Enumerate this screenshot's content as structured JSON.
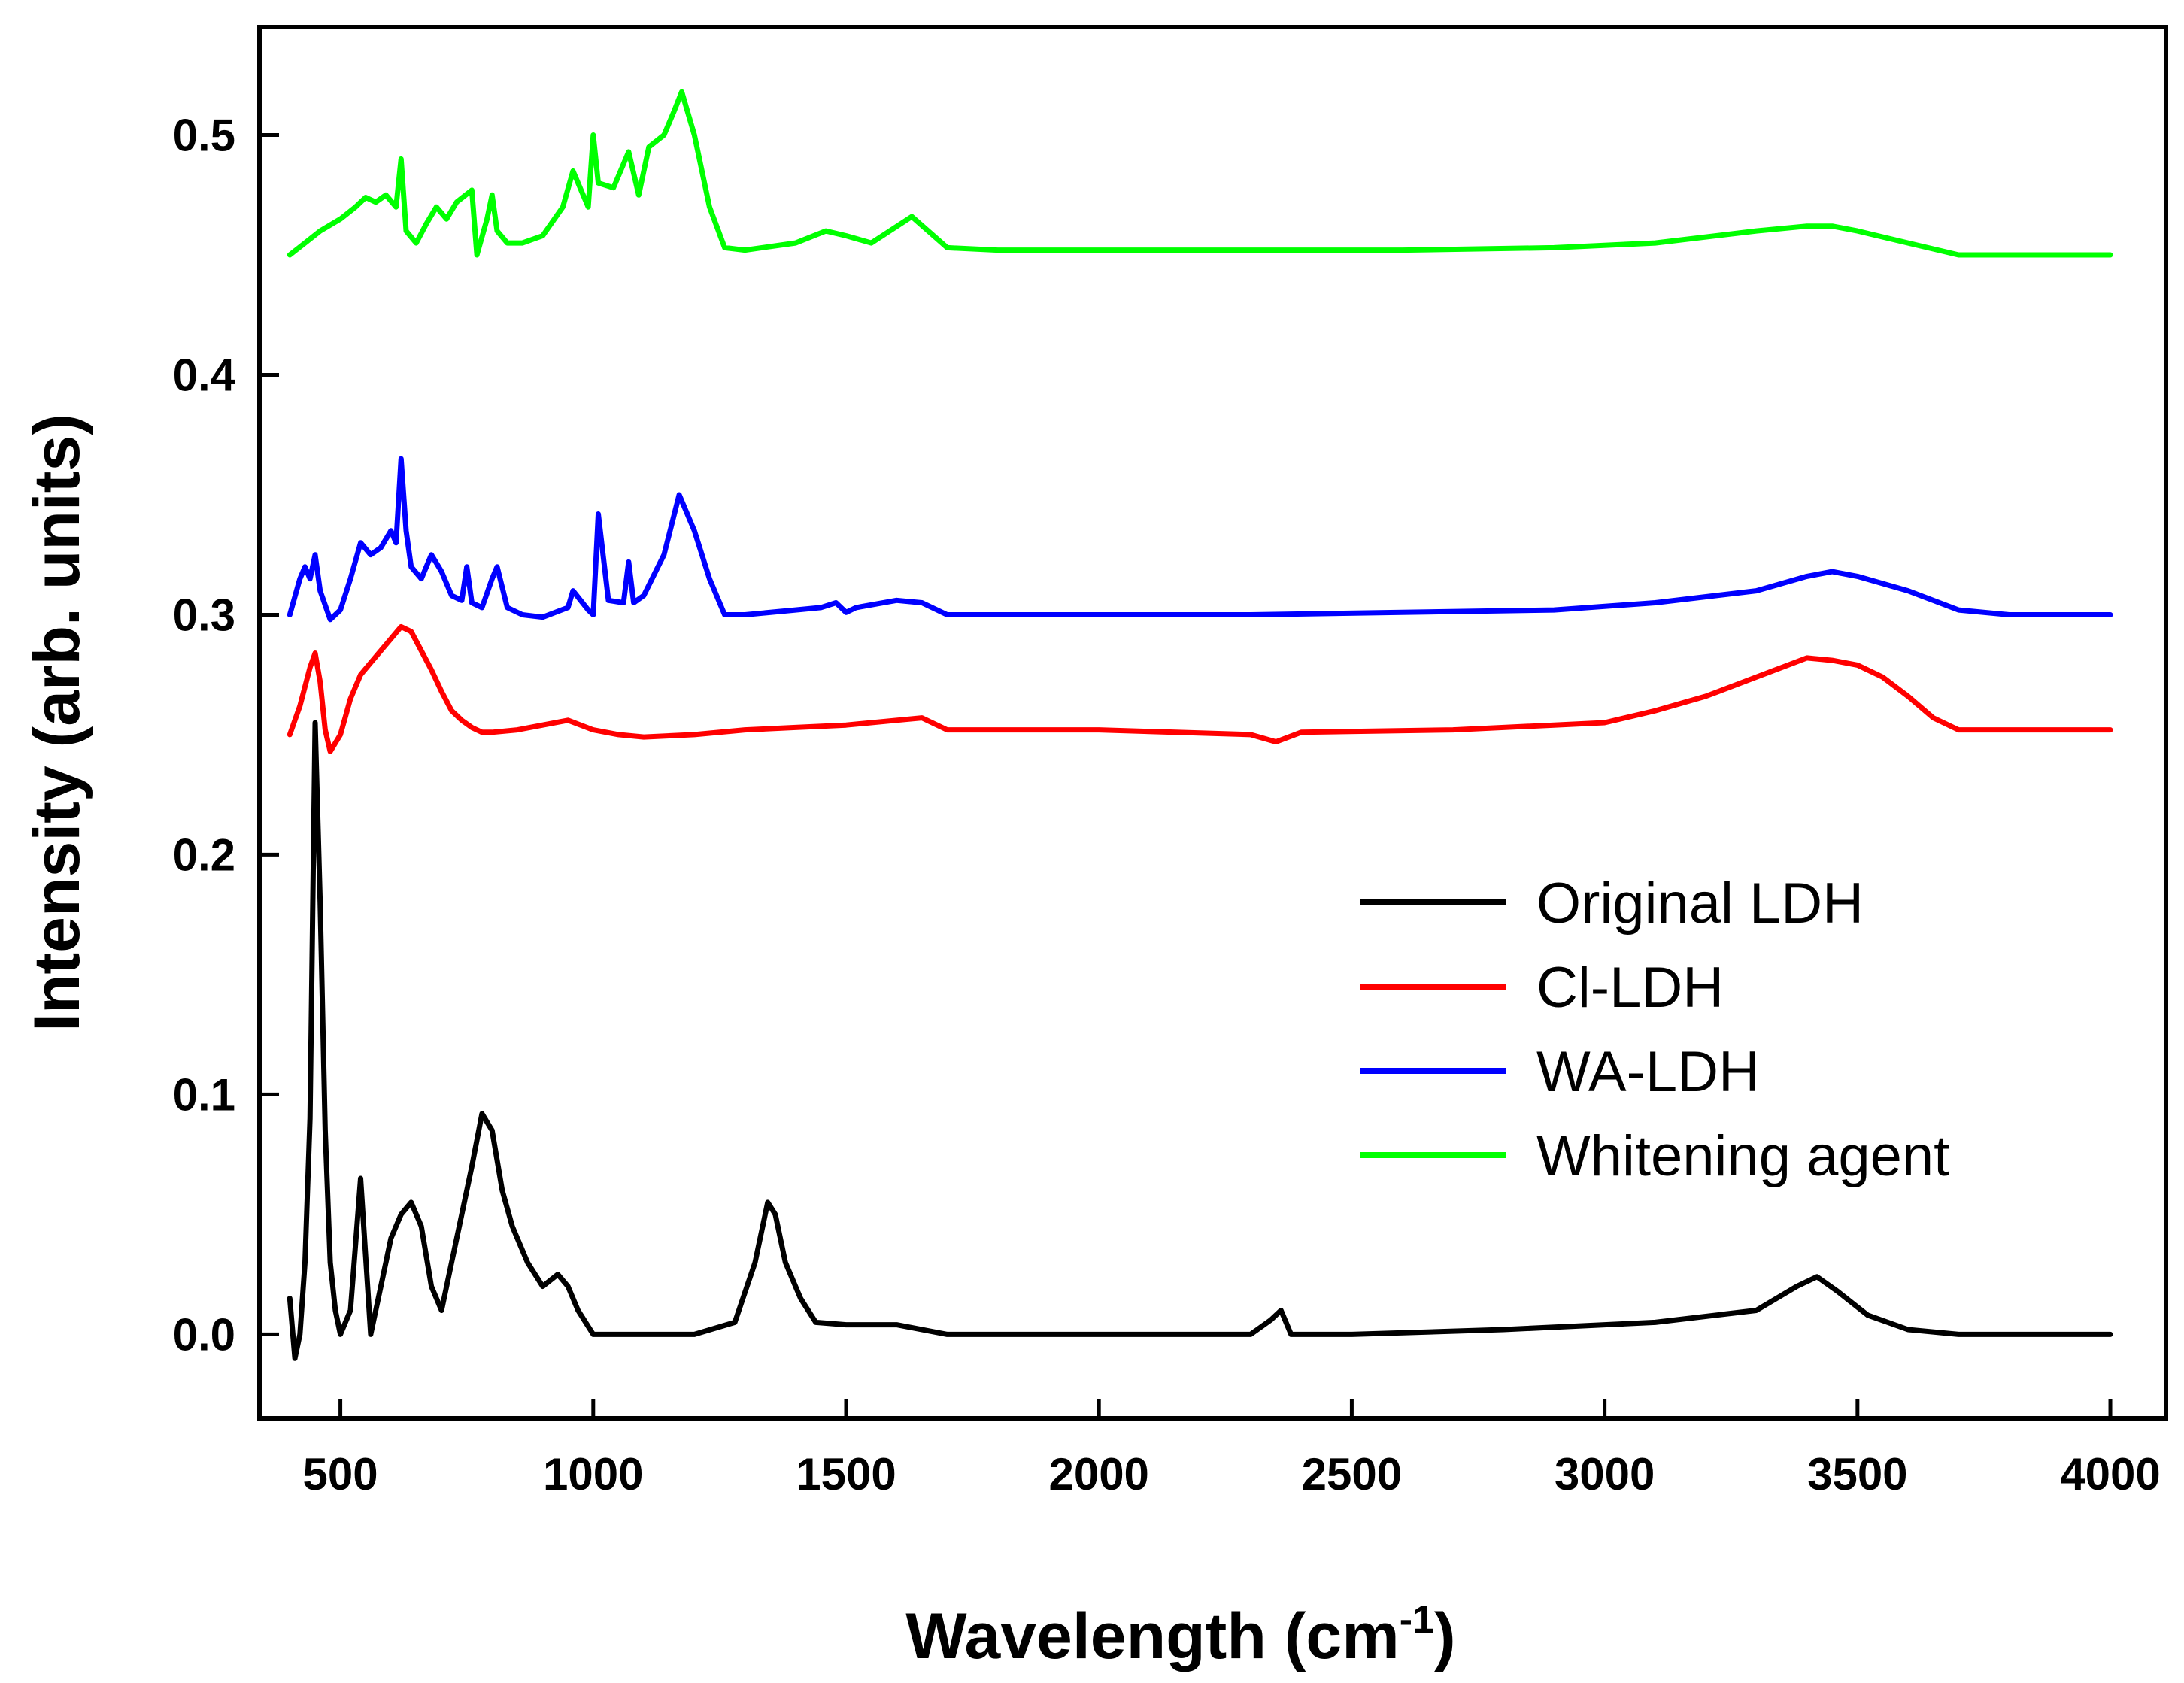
{
  "chart_data": {
    "type": "line",
    "title": "",
    "xlabel": "Wavelength (cm",
    "xlabel_sup": "-1",
    "xlabel_close": ")",
    "ylabel": "Intensity (arb. units)",
    "xlim": [
      340,
      4110
    ],
    "ylim": [
      -0.035,
      0.545
    ],
    "xticks": [
      500,
      1000,
      1500,
      2000,
      2500,
      3000,
      3500,
      4000
    ],
    "xtick_labels": [
      "500",
      "1000",
      "1500",
      "2000",
      "2500",
      "3000",
      "3500",
      "4000"
    ],
    "yticks": [
      0.0,
      0.1,
      0.2,
      0.3,
      0.4,
      0.5
    ],
    "ytick_labels": [
      "0.0",
      "0.1",
      "0.2",
      "0.3",
      "0.4",
      "0.5"
    ],
    "grid": false,
    "legend_position": "lower-right",
    "series": [
      {
        "name": "Original LDH",
        "color": "#000000",
        "x": [
          400,
          410,
          420,
          430,
          440,
          450,
          460,
          470,
          480,
          490,
          500,
          520,
          540,
          560,
          580,
          600,
          620,
          640,
          660,
          680,
          700,
          720,
          740,
          760,
          780,
          800,
          820,
          840,
          870,
          900,
          930,
          950,
          970,
          1000,
          1050,
          1100,
          1200,
          1280,
          1320,
          1345,
          1360,
          1380,
          1410,
          1440,
          1500,
          1600,
          1700,
          2000,
          2300,
          2340,
          2360,
          2380,
          2500,
          2800,
          3100,
          3300,
          3380,
          3420,
          3460,
          3520,
          3600,
          3700,
          4000
        ],
        "y": [
          0.015,
          -0.01,
          0.0,
          0.03,
          0.09,
          0.255,
          0.18,
          0.085,
          0.03,
          0.01,
          0.0,
          0.01,
          0.065,
          0.0,
          0.02,
          0.04,
          0.05,
          0.055,
          0.045,
          0.02,
          0.01,
          0.03,
          0.05,
          0.07,
          0.092,
          0.085,
          0.06,
          0.045,
          0.03,
          0.02,
          0.025,
          0.02,
          0.01,
          0.0,
          0.0,
          0.0,
          0.0,
          0.005,
          0.03,
          0.055,
          0.05,
          0.03,
          0.015,
          0.005,
          0.004,
          0.004,
          0.0,
          0.0,
          0.0,
          0.006,
          0.01,
          0.0,
          0.0,
          0.002,
          0.005,
          0.01,
          0.02,
          0.024,
          0.018,
          0.008,
          0.002,
          0.0,
          0.0
        ]
      },
      {
        "name": "Cl-LDH",
        "color": "#ff0000",
        "x": [
          400,
          420,
          440,
          450,
          460,
          470,
          480,
          500,
          520,
          540,
          560,
          580,
          600,
          620,
          640,
          660,
          680,
          700,
          720,
          740,
          760,
          780,
          800,
          850,
          900,
          950,
          1000,
          1050,
          1100,
          1200,
          1300,
          1400,
          1500,
          1600,
          1650,
          1700,
          2000,
          2300,
          2350,
          2400,
          2700,
          2900,
          3000,
          3100,
          3200,
          3300,
          3350,
          3400,
          3450,
          3500,
          3550,
          3600,
          3650,
          3700,
          3800,
          4000
        ],
        "y": [
          0.25,
          0.262,
          0.278,
          0.284,
          0.272,
          0.252,
          0.243,
          0.25,
          0.265,
          0.275,
          0.28,
          0.285,
          0.29,
          0.295,
          0.293,
          0.285,
          0.277,
          0.268,
          0.26,
          0.256,
          0.253,
          0.251,
          0.251,
          0.252,
          0.254,
          0.256,
          0.252,
          0.25,
          0.249,
          0.25,
          0.252,
          0.253,
          0.254,
          0.256,
          0.257,
          0.252,
          0.252,
          0.25,
          0.247,
          0.251,
          0.252,
          0.254,
          0.255,
          0.26,
          0.266,
          0.274,
          0.278,
          0.282,
          0.281,
          0.279,
          0.274,
          0.266,
          0.257,
          0.252,
          0.252,
          0.252
        ]
      },
      {
        "name": "WA-LDH",
        "color": "#0000ff",
        "x": [
          400,
          420,
          430,
          440,
          450,
          460,
          480,
          500,
          520,
          540,
          560,
          580,
          600,
          610,
          620,
          630,
          640,
          660,
          680,
          700,
          720,
          740,
          750,
          760,
          780,
          800,
          810,
          830,
          860,
          900,
          950,
          960,
          990,
          1000,
          1010,
          1030,
          1060,
          1070,
          1080,
          1100,
          1140,
          1170,
          1200,
          1230,
          1260,
          1300,
          1400,
          1450,
          1480,
          1500,
          1520,
          1600,
          1650,
          1700,
          2000,
          2300,
          2600,
          2900,
          3100,
          3300,
          3400,
          3450,
          3500,
          3600,
          3700,
          3800,
          4000
        ],
        "y": [
          0.3,
          0.315,
          0.32,
          0.315,
          0.325,
          0.31,
          0.298,
          0.302,
          0.315,
          0.33,
          0.325,
          0.328,
          0.335,
          0.33,
          0.365,
          0.335,
          0.32,
          0.315,
          0.325,
          0.318,
          0.308,
          0.306,
          0.32,
          0.305,
          0.303,
          0.315,
          0.32,
          0.303,
          0.3,
          0.299,
          0.303,
          0.31,
          0.302,
          0.3,
          0.342,
          0.306,
          0.305,
          0.322,
          0.305,
          0.308,
          0.325,
          0.35,
          0.335,
          0.315,
          0.3,
          0.3,
          0.302,
          0.303,
          0.305,
          0.301,
          0.303,
          0.306,
          0.305,
          0.3,
          0.3,
          0.3,
          0.301,
          0.302,
          0.305,
          0.31,
          0.316,
          0.318,
          0.316,
          0.31,
          0.302,
          0.3,
          0.3
        ]
      },
      {
        "name": "Whitening agent",
        "color": "#00ff00",
        "x": [
          400,
          430,
          460,
          500,
          530,
          550,
          570,
          590,
          610,
          620,
          630,
          650,
          670,
          690,
          710,
          730,
          760,
          770,
          790,
          800,
          810,
          830,
          860,
          900,
          940,
          960,
          990,
          1000,
          1010,
          1040,
          1070,
          1090,
          1110,
          1140,
          1160,
          1175,
          1200,
          1230,
          1260,
          1300,
          1400,
          1460,
          1500,
          1550,
          1630,
          1700,
          1800,
          2000,
          2300,
          2600,
          2900,
          3100,
          3300,
          3400,
          3450,
          3500,
          3600,
          3700,
          4000
        ],
        "y": [
          0.45,
          0.455,
          0.46,
          0.465,
          0.47,
          0.474,
          0.472,
          0.475,
          0.47,
          0.49,
          0.46,
          0.455,
          0.463,
          0.47,
          0.465,
          0.472,
          0.477,
          0.45,
          0.465,
          0.475,
          0.46,
          0.455,
          0.455,
          0.458,
          0.47,
          0.485,
          0.47,
          0.5,
          0.48,
          0.478,
          0.493,
          0.475,
          0.495,
          0.5,
          0.51,
          0.518,
          0.5,
          0.47,
          0.453,
          0.452,
          0.455,
          0.46,
          0.458,
          0.455,
          0.466,
          0.453,
          0.452,
          0.452,
          0.452,
          0.452,
          0.453,
          0.455,
          0.46,
          0.462,
          0.462,
          0.46,
          0.455,
          0.45,
          0.45
        ]
      }
    ]
  }
}
